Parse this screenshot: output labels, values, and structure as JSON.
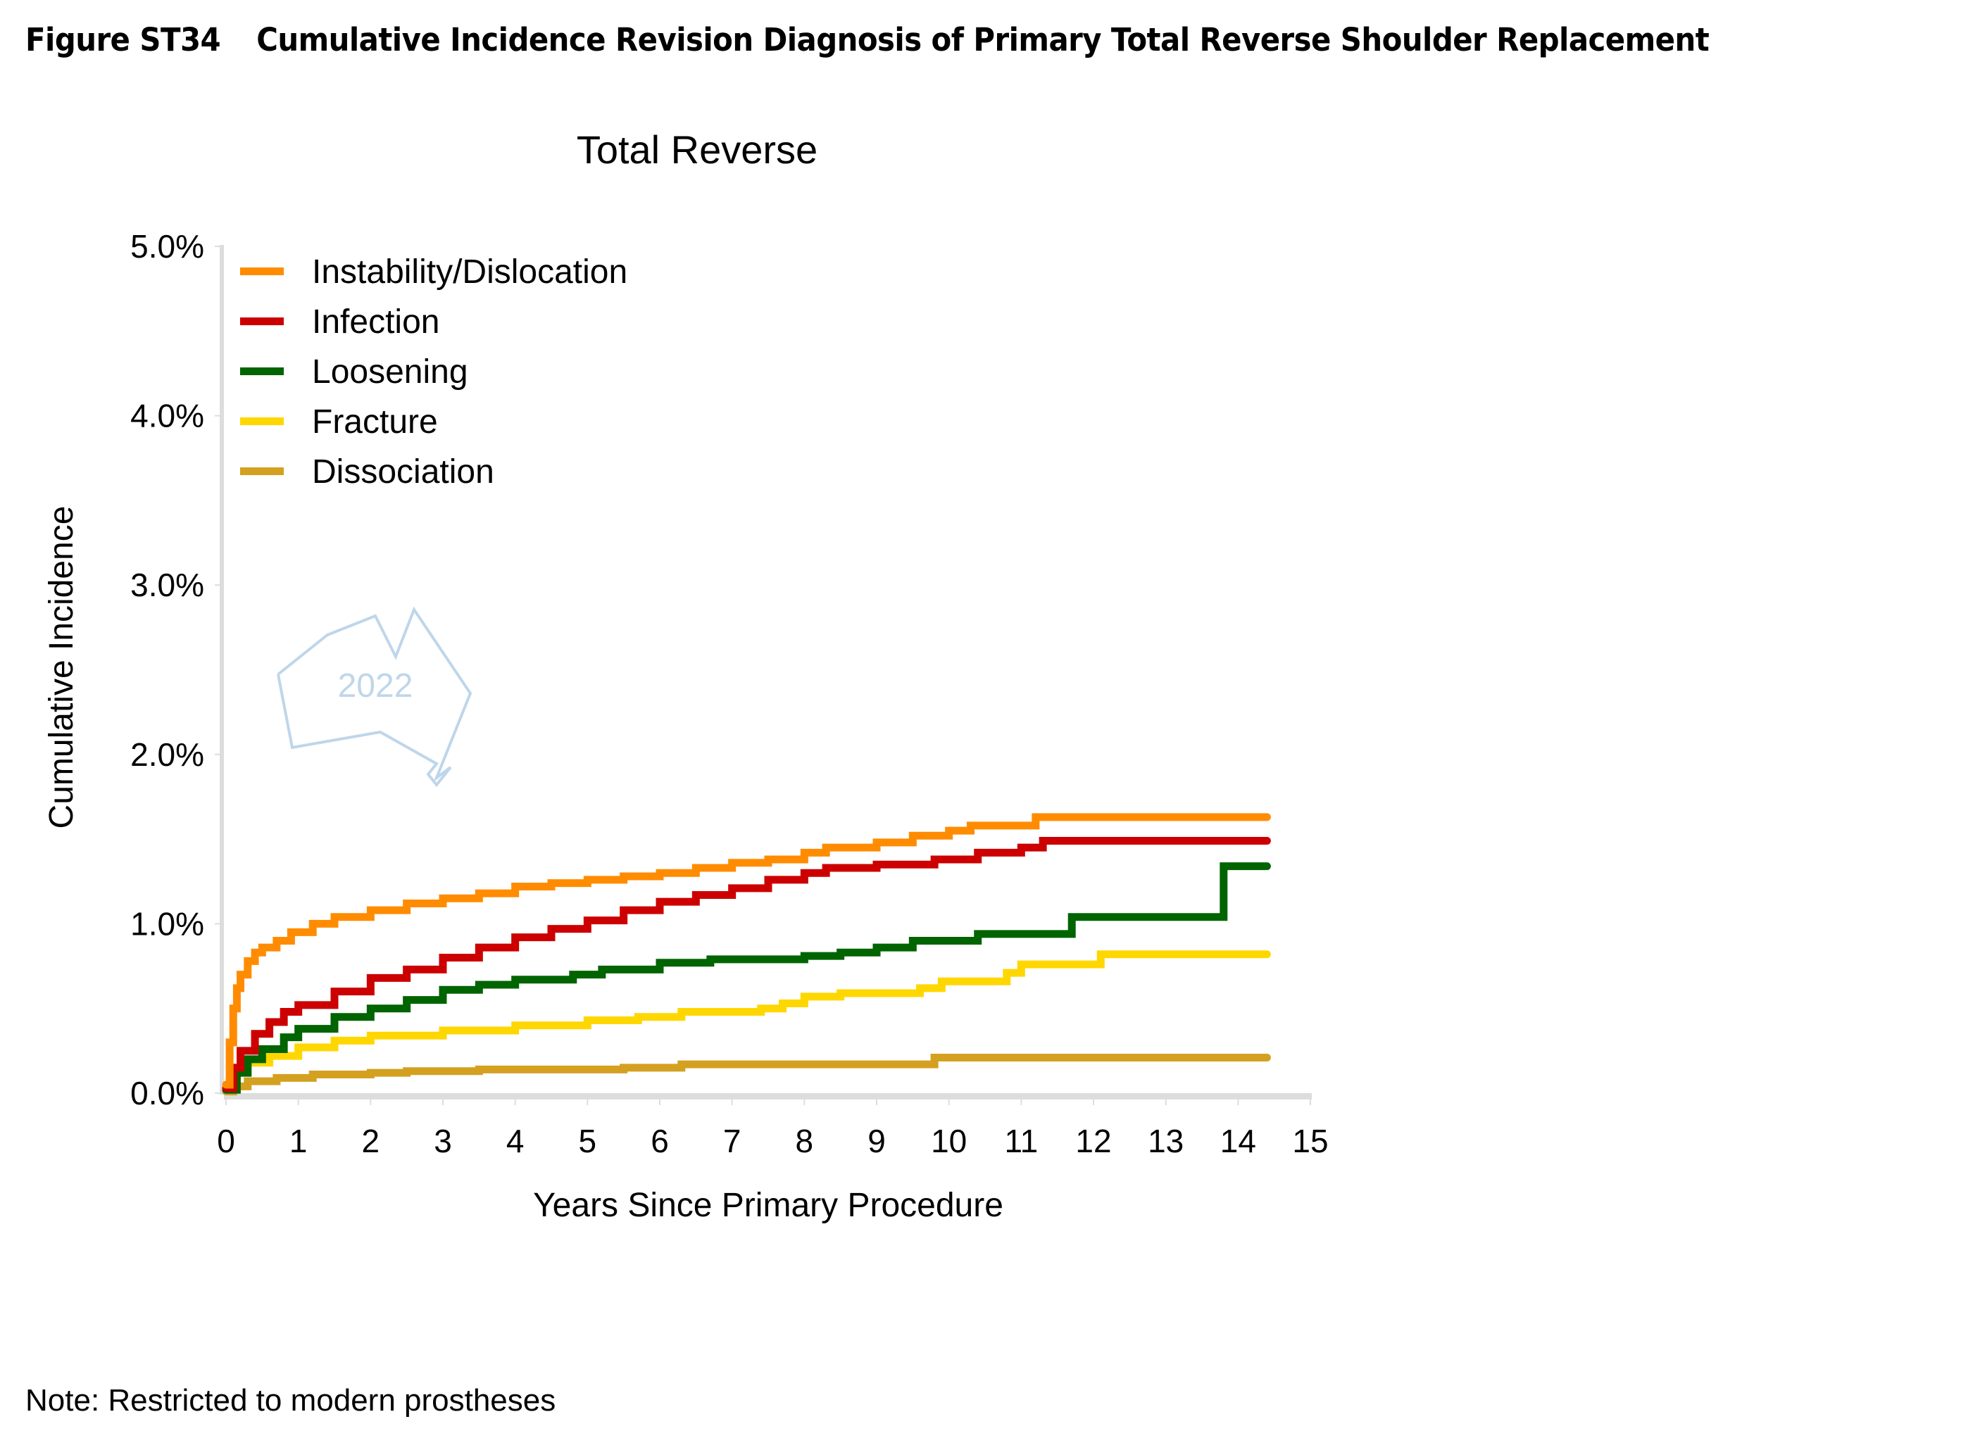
{
  "figure": {
    "number": "Figure ST34",
    "title": "Cumulative Incidence Revision Diagnosis of Primary Total Reverse Shoulder Replacement",
    "note": "Note: Restricted to modern prostheses",
    "watermark_text": "2022",
    "watermark_icon": "australia-outline-icon"
  },
  "chart_data": {
    "type": "line",
    "step": true,
    "title": "Total Reverse",
    "xlabel": "Years Since Primary Procedure",
    "ylabel": "Cumulative Incidence",
    "xlim": [
      0,
      15
    ],
    "ylim": [
      0,
      5
    ],
    "xticks": [
      "0",
      "1",
      "2",
      "3",
      "4",
      "5",
      "6",
      "7",
      "8",
      "9",
      "10",
      "11",
      "12",
      "13",
      "14",
      "15"
    ],
    "yticks": [
      "0.0%",
      "1.0%",
      "2.0%",
      "3.0%",
      "4.0%",
      "5.0%"
    ],
    "ytick_values": [
      0,
      1,
      2,
      3,
      4,
      5
    ],
    "grid": false,
    "legend_position": "top-left",
    "series": [
      {
        "name": "Instability/Dislocation",
        "color": "#FF8C00",
        "points": [
          [
            0,
            0.05
          ],
          [
            0.05,
            0.3
          ],
          [
            0.1,
            0.5
          ],
          [
            0.15,
            0.62
          ],
          [
            0.2,
            0.7
          ],
          [
            0.3,
            0.78
          ],
          [
            0.4,
            0.83
          ],
          [
            0.5,
            0.86
          ],
          [
            0.7,
            0.9
          ],
          [
            0.9,
            0.95
          ],
          [
            1.2,
            1.0
          ],
          [
            1.5,
            1.04
          ],
          [
            2.0,
            1.08
          ],
          [
            2.5,
            1.12
          ],
          [
            3.0,
            1.15
          ],
          [
            3.5,
            1.18
          ],
          [
            4.0,
            1.22
          ],
          [
            4.5,
            1.24
          ],
          [
            5.0,
            1.26
          ],
          [
            5.5,
            1.28
          ],
          [
            6.0,
            1.3
          ],
          [
            6.5,
            1.33
          ],
          [
            7.0,
            1.36
          ],
          [
            7.5,
            1.38
          ],
          [
            8.0,
            1.42
          ],
          [
            8.3,
            1.45
          ],
          [
            9.0,
            1.48
          ],
          [
            9.5,
            1.52
          ],
          [
            10.0,
            1.55
          ],
          [
            10.3,
            1.58
          ],
          [
            11.2,
            1.63
          ],
          [
            14.4,
            1.63
          ]
        ]
      },
      {
        "name": "Infection",
        "color": "#CC0000",
        "points": [
          [
            0,
            0.03
          ],
          [
            0.1,
            0.15
          ],
          [
            0.2,
            0.25
          ],
          [
            0.4,
            0.35
          ],
          [
            0.6,
            0.42
          ],
          [
            0.8,
            0.48
          ],
          [
            1.0,
            0.52
          ],
          [
            1.5,
            0.6
          ],
          [
            2.0,
            0.68
          ],
          [
            2.5,
            0.73
          ],
          [
            3.0,
            0.8
          ],
          [
            3.5,
            0.86
          ],
          [
            4.0,
            0.92
          ],
          [
            4.5,
            0.97
          ],
          [
            5.0,
            1.02
          ],
          [
            5.5,
            1.08
          ],
          [
            6.0,
            1.13
          ],
          [
            6.5,
            1.17
          ],
          [
            7.0,
            1.21
          ],
          [
            7.5,
            1.26
          ],
          [
            8.0,
            1.3
          ],
          [
            8.3,
            1.33
          ],
          [
            9.0,
            1.35
          ],
          [
            9.8,
            1.38
          ],
          [
            10.4,
            1.42
          ],
          [
            11.0,
            1.45
          ],
          [
            11.3,
            1.49
          ],
          [
            14.4,
            1.49
          ]
        ]
      },
      {
        "name": "Loosening",
        "color": "#006400",
        "points": [
          [
            0,
            0.02
          ],
          [
            0.15,
            0.12
          ],
          [
            0.3,
            0.2
          ],
          [
            0.5,
            0.26
          ],
          [
            0.8,
            0.33
          ],
          [
            1.0,
            0.38
          ],
          [
            1.5,
            0.45
          ],
          [
            2.0,
            0.5
          ],
          [
            2.5,
            0.55
          ],
          [
            3.0,
            0.61
          ],
          [
            3.5,
            0.64
          ],
          [
            4.0,
            0.67
          ],
          [
            4.8,
            0.7
          ],
          [
            5.2,
            0.73
          ],
          [
            6.0,
            0.77
          ],
          [
            6.7,
            0.79
          ],
          [
            8.0,
            0.81
          ],
          [
            8.5,
            0.83
          ],
          [
            9.0,
            0.86
          ],
          [
            9.5,
            0.9
          ],
          [
            10.4,
            0.94
          ],
          [
            11.7,
            1.04
          ],
          [
            13.8,
            1.34
          ],
          [
            14.4,
            1.34
          ]
        ]
      },
      {
        "name": "Fracture",
        "color": "#FFD700",
        "points": [
          [
            0,
            0.05
          ],
          [
            0.1,
            0.12
          ],
          [
            0.3,
            0.18
          ],
          [
            0.6,
            0.22
          ],
          [
            1.0,
            0.27
          ],
          [
            1.5,
            0.31
          ],
          [
            2.0,
            0.34
          ],
          [
            3.0,
            0.37
          ],
          [
            4.0,
            0.4
          ],
          [
            5.0,
            0.43
          ],
          [
            5.7,
            0.45
          ],
          [
            6.3,
            0.48
          ],
          [
            7.4,
            0.5
          ],
          [
            7.7,
            0.53
          ],
          [
            8.0,
            0.57
          ],
          [
            8.5,
            0.59
          ],
          [
            9.6,
            0.62
          ],
          [
            9.9,
            0.66
          ],
          [
            10.8,
            0.71
          ],
          [
            11.0,
            0.76
          ],
          [
            12.1,
            0.82
          ],
          [
            14.4,
            0.82
          ]
        ]
      },
      {
        "name": "Dissociation",
        "color": "#D4A020",
        "points": [
          [
            0,
            0.01
          ],
          [
            0.1,
            0.04
          ],
          [
            0.3,
            0.07
          ],
          [
            0.7,
            0.09
          ],
          [
            1.2,
            0.11
          ],
          [
            2.0,
            0.12
          ],
          [
            2.5,
            0.13
          ],
          [
            3.5,
            0.14
          ],
          [
            5.5,
            0.15
          ],
          [
            6.3,
            0.17
          ],
          [
            9.8,
            0.21
          ],
          [
            14.4,
            0.21
          ]
        ]
      }
    ]
  }
}
